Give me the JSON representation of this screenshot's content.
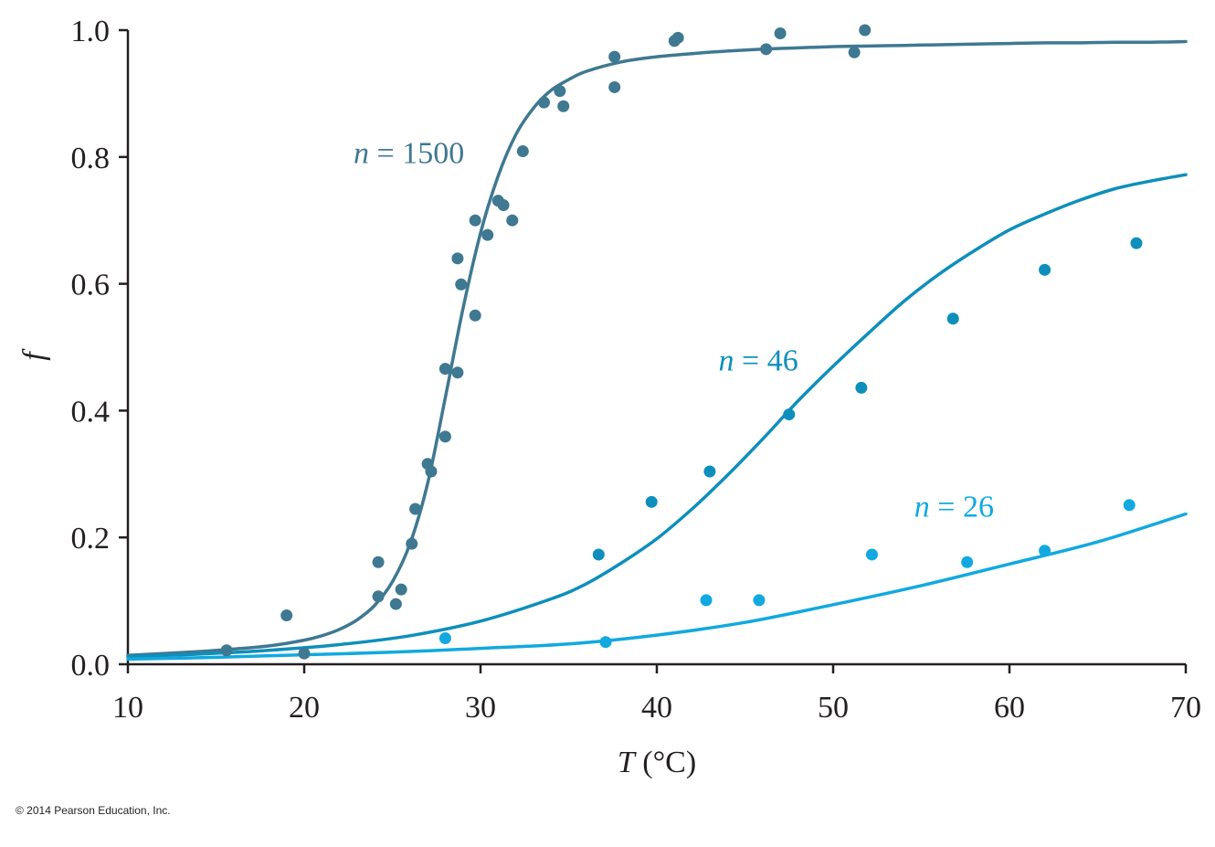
{
  "copyright": "© 2014 Pearson Education, Inc.",
  "chart_data": {
    "type": "scatter",
    "title": "",
    "xlabel_var": "T",
    "xlabel_unit": " (°C)",
    "ylabel": "f",
    "xlim": [
      10,
      70
    ],
    "ylim": [
      0.0,
      1.0
    ],
    "xticks": [
      10,
      20,
      30,
      40,
      50,
      60,
      70
    ],
    "xtick_labels": [
      "10",
      "20",
      "30",
      "40",
      "50",
      "60",
      "70"
    ],
    "yticks": [
      0.0,
      0.2,
      0.4,
      0.6,
      0.8,
      1.0
    ],
    "ytick_labels": [
      "0.0",
      "0.2",
      "0.4",
      "0.6",
      "0.8",
      "1.0"
    ],
    "grid": false,
    "legend": "none",
    "series": [
      {
        "label_var": "n",
        "label_text": " = 1500",
        "color": "#3f7891",
        "label_anchor": [
          22.8,
          0.79
        ],
        "fit_curve": {
          "model": "logistic",
          "baseline": 0.0,
          "top": 0.985,
          "midpoint": 28.2,
          "width": 1.6,
          "x": [
            10,
            12,
            14,
            16,
            18,
            20,
            21,
            22,
            23,
            24,
            25,
            26,
            27,
            28,
            29,
            30,
            31,
            32,
            33,
            34,
            35,
            36,
            38,
            40,
            42,
            44,
            46,
            48,
            50,
            52,
            54,
            56,
            58,
            60,
            62,
            64,
            66,
            68,
            70
          ],
          "y": [
            0.014,
            0.017,
            0.02,
            0.024,
            0.029,
            0.038,
            0.045,
            0.055,
            0.07,
            0.093,
            0.13,
            0.19,
            0.285,
            0.42,
            0.56,
            0.68,
            0.77,
            0.835,
            0.877,
            0.905,
            0.922,
            0.935,
            0.95,
            0.958,
            0.963,
            0.967,
            0.97,
            0.972,
            0.974,
            0.975,
            0.976,
            0.977,
            0.978,
            0.979,
            0.98,
            0.98,
            0.981,
            0.981,
            0.982
          ]
        },
        "points": [
          [
            15.6,
            0.022
          ],
          [
            19.0,
            0.077
          ],
          [
            20.0,
            0.017
          ],
          [
            24.2,
            0.161
          ],
          [
            24.2,
            0.107
          ],
          [
            25.2,
            0.095
          ],
          [
            25.5,
            0.118
          ],
          [
            26.1,
            0.19
          ],
          [
            26.3,
            0.245
          ],
          [
            27.0,
            0.316
          ],
          [
            27.2,
            0.304
          ],
          [
            28.0,
            0.359
          ],
          [
            28.0,
            0.466
          ],
          [
            28.7,
            0.46
          ],
          [
            28.7,
            0.64
          ],
          [
            28.9,
            0.599
          ],
          [
            29.7,
            0.55
          ],
          [
            29.7,
            0.7
          ],
          [
            30.4,
            0.677
          ],
          [
            31.0,
            0.731
          ],
          [
            31.3,
            0.724
          ],
          [
            31.8,
            0.7
          ],
          [
            32.4,
            0.809
          ],
          [
            33.6,
            0.886
          ],
          [
            34.5,
            0.904
          ],
          [
            34.7,
            0.88
          ],
          [
            37.6,
            0.958
          ],
          [
            37.6,
            0.91
          ],
          [
            41.0,
            0.983
          ],
          [
            41.2,
            0.988
          ],
          [
            46.2,
            0.97
          ],
          [
            47.0,
            0.995
          ],
          [
            51.2,
            0.965
          ],
          [
            51.8,
            1.0
          ]
        ]
      },
      {
        "label_var": "n",
        "label_text": " = 46",
        "color": "#0e8fbb",
        "label_anchor": [
          43.5,
          0.463
        ],
        "fit_curve": {
          "model": "logistic",
          "baseline": 0.0,
          "top": 0.86,
          "midpoint": 49.5,
          "width": 6.3,
          "x": [
            10,
            14,
            18,
            22,
            26,
            30,
            34,
            36,
            38,
            40,
            42,
            44,
            46,
            48,
            50,
            52,
            54,
            56,
            58,
            60,
            62,
            64,
            66,
            68,
            70
          ],
          "y": [
            0.012,
            0.016,
            0.022,
            0.031,
            0.045,
            0.068,
            0.103,
            0.127,
            0.16,
            0.198,
            0.245,
            0.298,
            0.355,
            0.415,
            0.47,
            0.522,
            0.572,
            0.615,
            0.652,
            0.685,
            0.71,
            0.732,
            0.75,
            0.762,
            0.772
          ]
        },
        "points": [
          [
            36.7,
            0.173
          ],
          [
            39.7,
            0.256
          ],
          [
            43.0,
            0.304
          ],
          [
            47.5,
            0.394
          ],
          [
            51.6,
            0.436
          ],
          [
            56.8,
            0.545
          ],
          [
            62.0,
            0.622
          ],
          [
            67.2,
            0.664
          ]
        ]
      },
      {
        "label_var": "n",
        "label_text": " = 26",
        "color": "#11a9df",
        "label_anchor": [
          54.6,
          0.233
        ],
        "fit_curve": {
          "model": "logistic",
          "baseline": 0.0,
          "top": 1.0,
          "midpoint": 79.0,
          "width": 9.0,
          "x": [
            10,
            15,
            20,
            25,
            30,
            35,
            40,
            45,
            50,
            55,
            60,
            65,
            70
          ],
          "y": [
            0.008,
            0.011,
            0.015,
            0.019,
            0.025,
            0.032,
            0.046,
            0.066,
            0.094,
            0.124,
            0.158,
            0.193,
            0.237
          ]
        },
        "points": [
          [
            28.0,
            0.041
          ],
          [
            37.1,
            0.035
          ],
          [
            42.8,
            0.101
          ],
          [
            45.8,
            0.101
          ],
          [
            52.2,
            0.173
          ],
          [
            57.6,
            0.161
          ],
          [
            62.0,
            0.179
          ],
          [
            66.8,
            0.251
          ]
        ]
      }
    ]
  }
}
